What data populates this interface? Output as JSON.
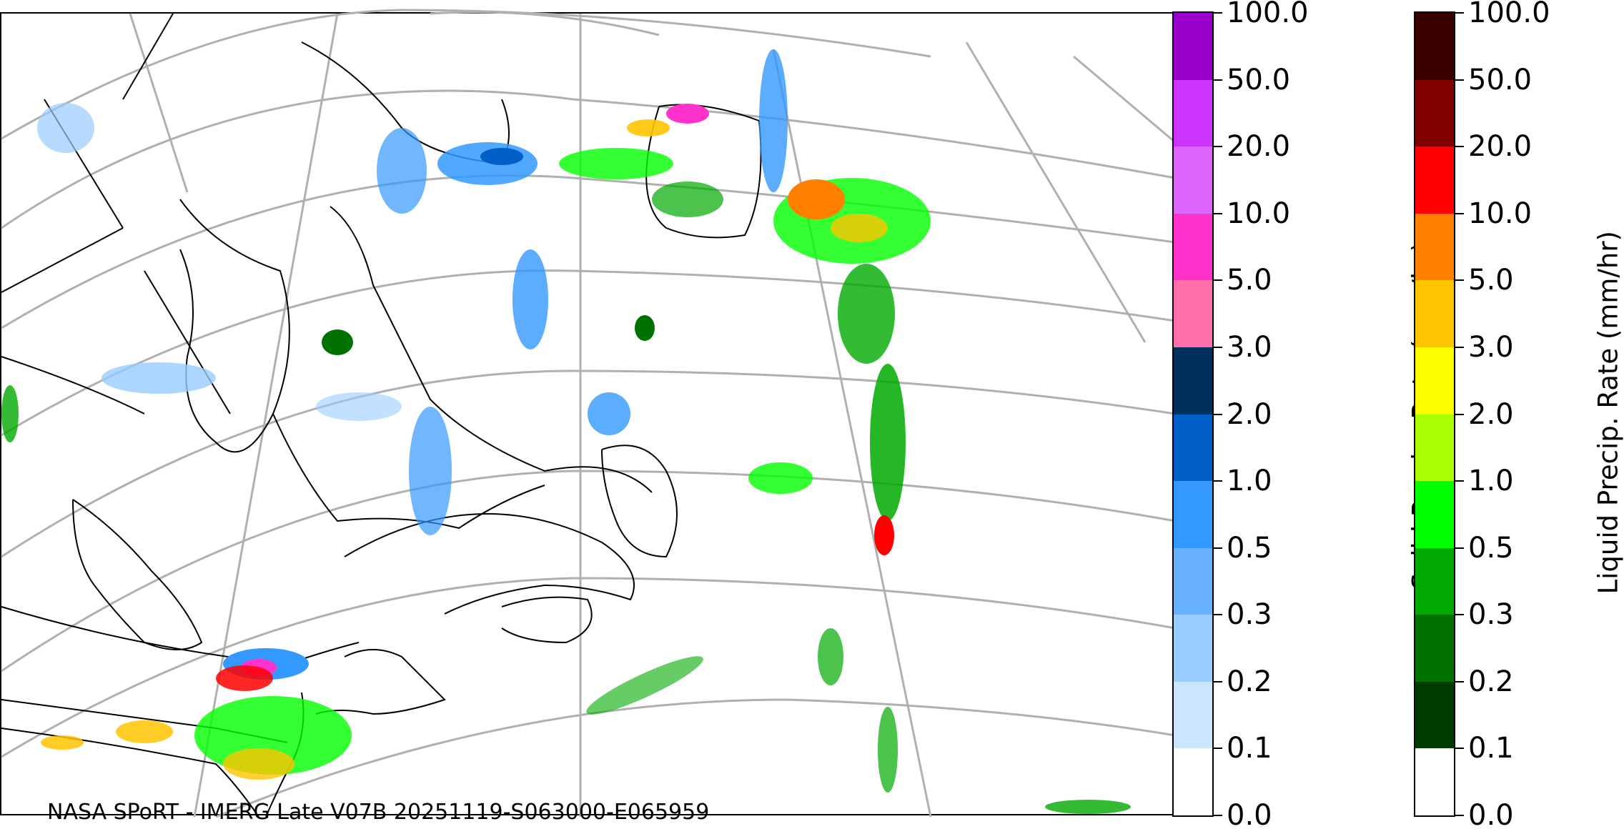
{
  "credit": "NASA SPoRT - IMERG Late V07B 20251119-S063000-E065959",
  "solid_colorbar": {
    "title": "Solid Precip. Rate (mm/hr)",
    "levels": [
      "100.0",
      "50.0",
      "20.0",
      "10.0",
      "5.0",
      "3.0",
      "2.0",
      "1.0",
      "0.5",
      "0.3",
      "0.2",
      "0.1",
      "0.0"
    ],
    "colors": [
      "#9900cc",
      "#cc33ff",
      "#dd66ff",
      "#ff33cc",
      "#ff6ea8",
      "#00305e",
      "#0060c8",
      "#3399ff",
      "#66b0ff",
      "#99ccff",
      "#cce5ff",
      "#ffffff"
    ]
  },
  "liquid_colorbar": {
    "title": "Liquid Precip. Rate (mm/hr)",
    "levels": [
      "100.0",
      "50.0",
      "20.0",
      "10.0",
      "5.0",
      "3.0",
      "2.0",
      "1.0",
      "0.5",
      "0.3",
      "0.2",
      "0.1",
      "0.0"
    ],
    "colors": [
      "#3a0000",
      "#800000",
      "#ff0000",
      "#ff7f00",
      "#ffc400",
      "#ffff00",
      "#aaff00",
      "#00ff00",
      "#00aa00",
      "#007200",
      "#003c00",
      "#ffffff"
    ]
  },
  "map_colors": {
    "graticule": "#b0b0b0",
    "coastline": "#000000"
  }
}
